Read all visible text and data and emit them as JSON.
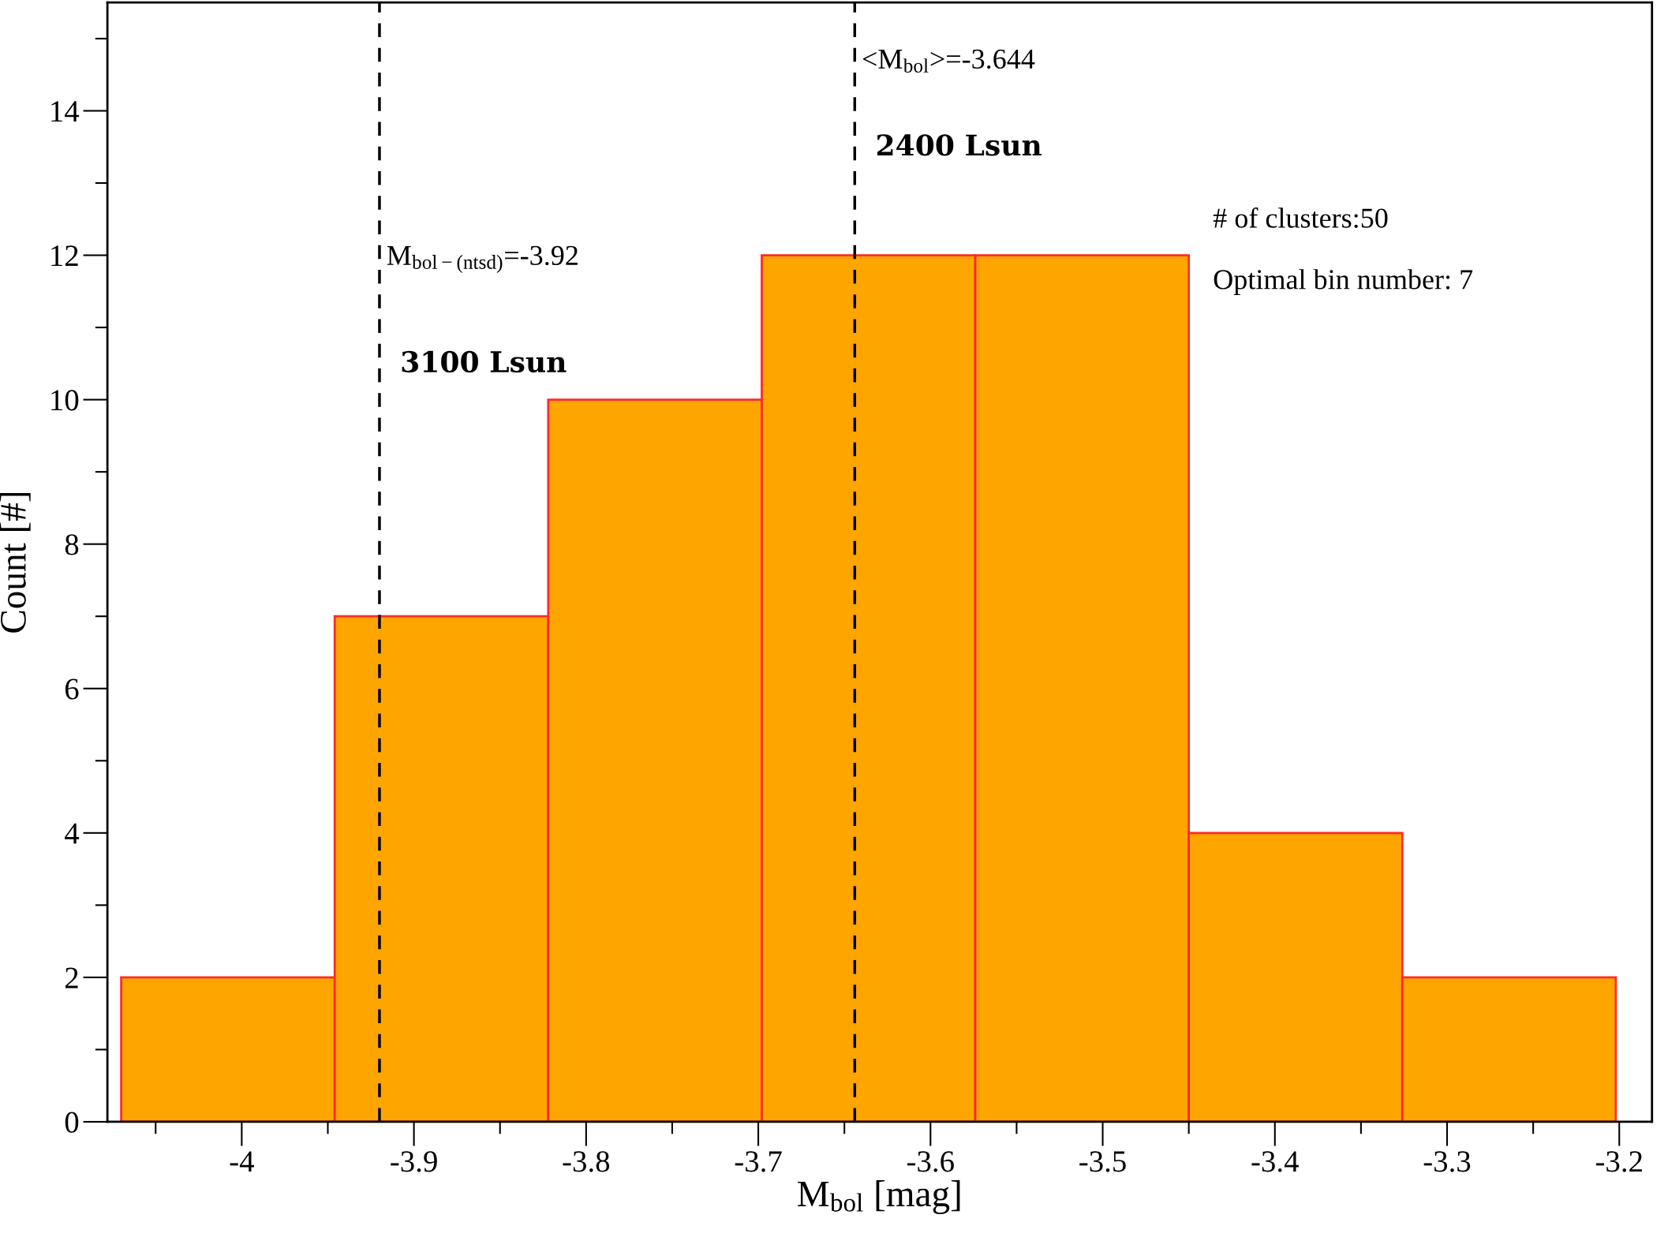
{
  "chart_data": {
    "type": "histogram",
    "xlabel": "M$_{bol}$ [mag]",
    "ylabel": "Count [#]",
    "bins": [
      -4.07,
      -3.946,
      -3.822,
      -3.698,
      -3.574,
      -3.45,
      -3.326,
      -3.202
    ],
    "values": [
      2,
      7,
      10,
      12,
      12,
      4,
      2
    ],
    "color": "#ffa500",
    "xlim": [
      -4.078,
      -3.181
    ],
    "ylim": [
      0,
      15.5
    ],
    "xticks": [
      -4,
      -3.9,
      -3.8,
      -3.7,
      -3.6,
      -3.5,
      -3.4,
      -3.3,
      -3.2,
      {
        "value": -4.05,
        "label": null
      },
      {
        "value": -3.95,
        "label": null
      },
      {
        "value": -3.85,
        "label": null
      },
      {
        "value": -3.75,
        "label": null
      },
      {
        "value": -3.65,
        "label": null
      },
      {
        "value": -3.55,
        "label": null
      },
      {
        "value": -3.45,
        "label": null
      },
      {
        "value": -3.35,
        "label": null
      },
      {
        "value": -3.25,
        "label": null
      }
    ],
    "yticks": [
      0,
      2,
      4,
      6,
      8,
      10,
      12,
      14,
      {
        "value": 1,
        "label": null
      },
      {
        "value": 3,
        "label": null
      },
      {
        "value": 5,
        "label": null
      },
      {
        "value": 7,
        "label": null
      },
      {
        "value": 9,
        "label": null
      },
      {
        "value": 11,
        "label": null
      },
      {
        "value": 13,
        "label": null
      },
      {
        "value": 15,
        "label": null
      }
    ],
    "ref_lines": [
      {
        "axis": "x",
        "value": -3.92,
        "label": "M$_{bol−(ntsd)}$=-3.92",
        "color": "#000000",
        "line_style": "dashed"
      },
      {
        "axis": "x",
        "value": -3.644,
        "label": "<M$_{bol}$>=-3.644",
        "color": "#000000",
        "line_style": "dashed"
      }
    ],
    "annotations": [
      {
        "text": "3100 Lsun",
        "x": -3.92,
        "y": 10.3
      },
      {
        "text": "2400 Lsun",
        "x": -3.644,
        "y": 13.3
      },
      "# of clusters:50",
      "Optimal bin number: 7"
    ],
    "grid": false
  }
}
